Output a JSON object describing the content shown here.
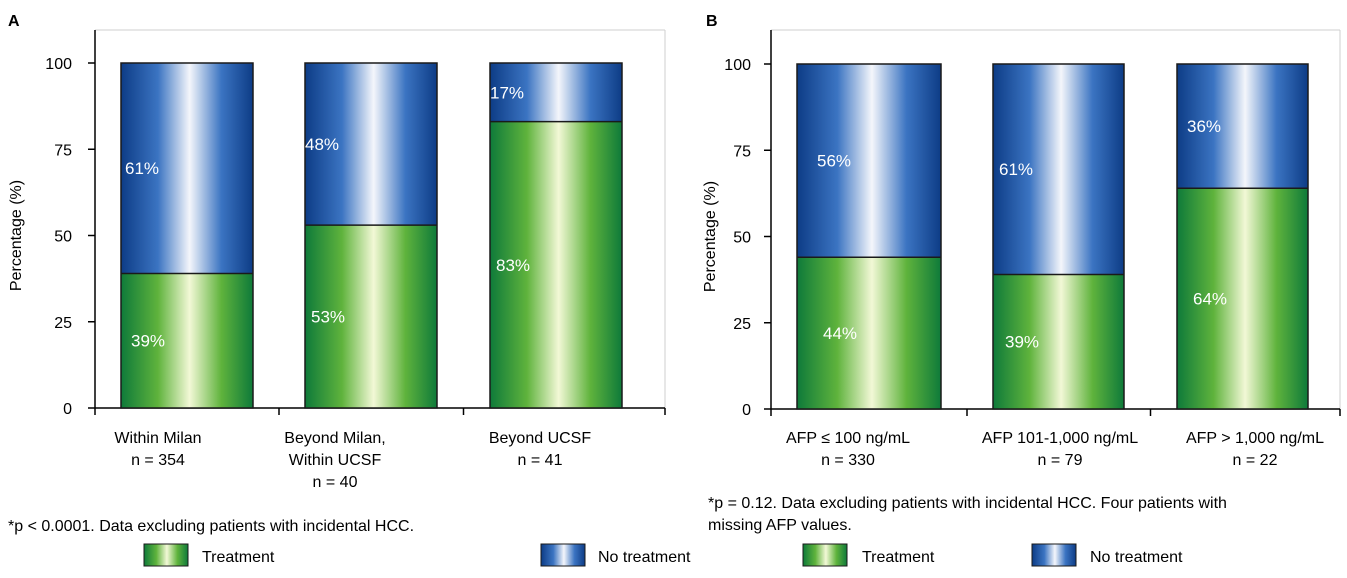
{
  "colors": {
    "treatment_dark": "#0e7a3a",
    "treatment_mid": "#5fb33c",
    "treatment_light": "#f2f8d6",
    "no_treatment_dark": "#0d3c86",
    "no_treatment_mid": "#3b74c2",
    "no_treatment_light": "#f4f6fb",
    "axis": "#000000"
  },
  "chart_data": [
    {
      "type": "bar",
      "stacked": true,
      "panel": "A",
      "ylabel": "Percentage (%)",
      "ylim": [
        0,
        100
      ],
      "yticks": [
        0,
        25,
        50,
        75,
        100
      ],
      "categories": [
        [
          "Within Milan",
          "n = 354"
        ],
        [
          "Beyond Milan,",
          "Within UCSF",
          "n = 40"
        ],
        [
          "Beyond UCSF",
          "n = 41"
        ]
      ],
      "series": [
        {
          "name": "Treatment",
          "values": [
            39,
            53,
            83
          ],
          "labels": [
            "39%",
            "53%",
            "83%"
          ]
        },
        {
          "name": "No treatment",
          "values": [
            61,
            48,
            17
          ],
          "labels": [
            "61%",
            "48%",
            "17%"
          ]
        }
      ],
      "footnote": "*p < 0.0001. Data excluding patients with incidental HCC.",
      "legend": [
        "Treatment",
        "No treatment"
      ]
    },
    {
      "type": "bar",
      "stacked": true,
      "panel": "B",
      "ylabel": "Percentage (%)",
      "ylim": [
        0,
        100
      ],
      "yticks": [
        0,
        25,
        50,
        75,
        100
      ],
      "categories": [
        [
          "AFP ≤ 100 ng/mL",
          "n = 330"
        ],
        [
          "AFP 101-1,000 ng/mL",
          "n = 79"
        ],
        [
          "AFP > 1,000 ng/mL",
          "n = 22"
        ]
      ],
      "series": [
        {
          "name": "Treatment",
          "values": [
            44,
            39,
            64
          ],
          "labels": [
            "44%",
            "39%",
            "64%"
          ]
        },
        {
          "name": "No treatment",
          "values": [
            56,
            61,
            36
          ],
          "labels": [
            "56%",
            "61%",
            "36%"
          ]
        }
      ],
      "footnote": [
        "*p = 0.12. Data excluding patients with incidental HCC. Four patients with",
        "missing AFP values."
      ],
      "legend": [
        "Treatment",
        "No treatment"
      ]
    }
  ]
}
